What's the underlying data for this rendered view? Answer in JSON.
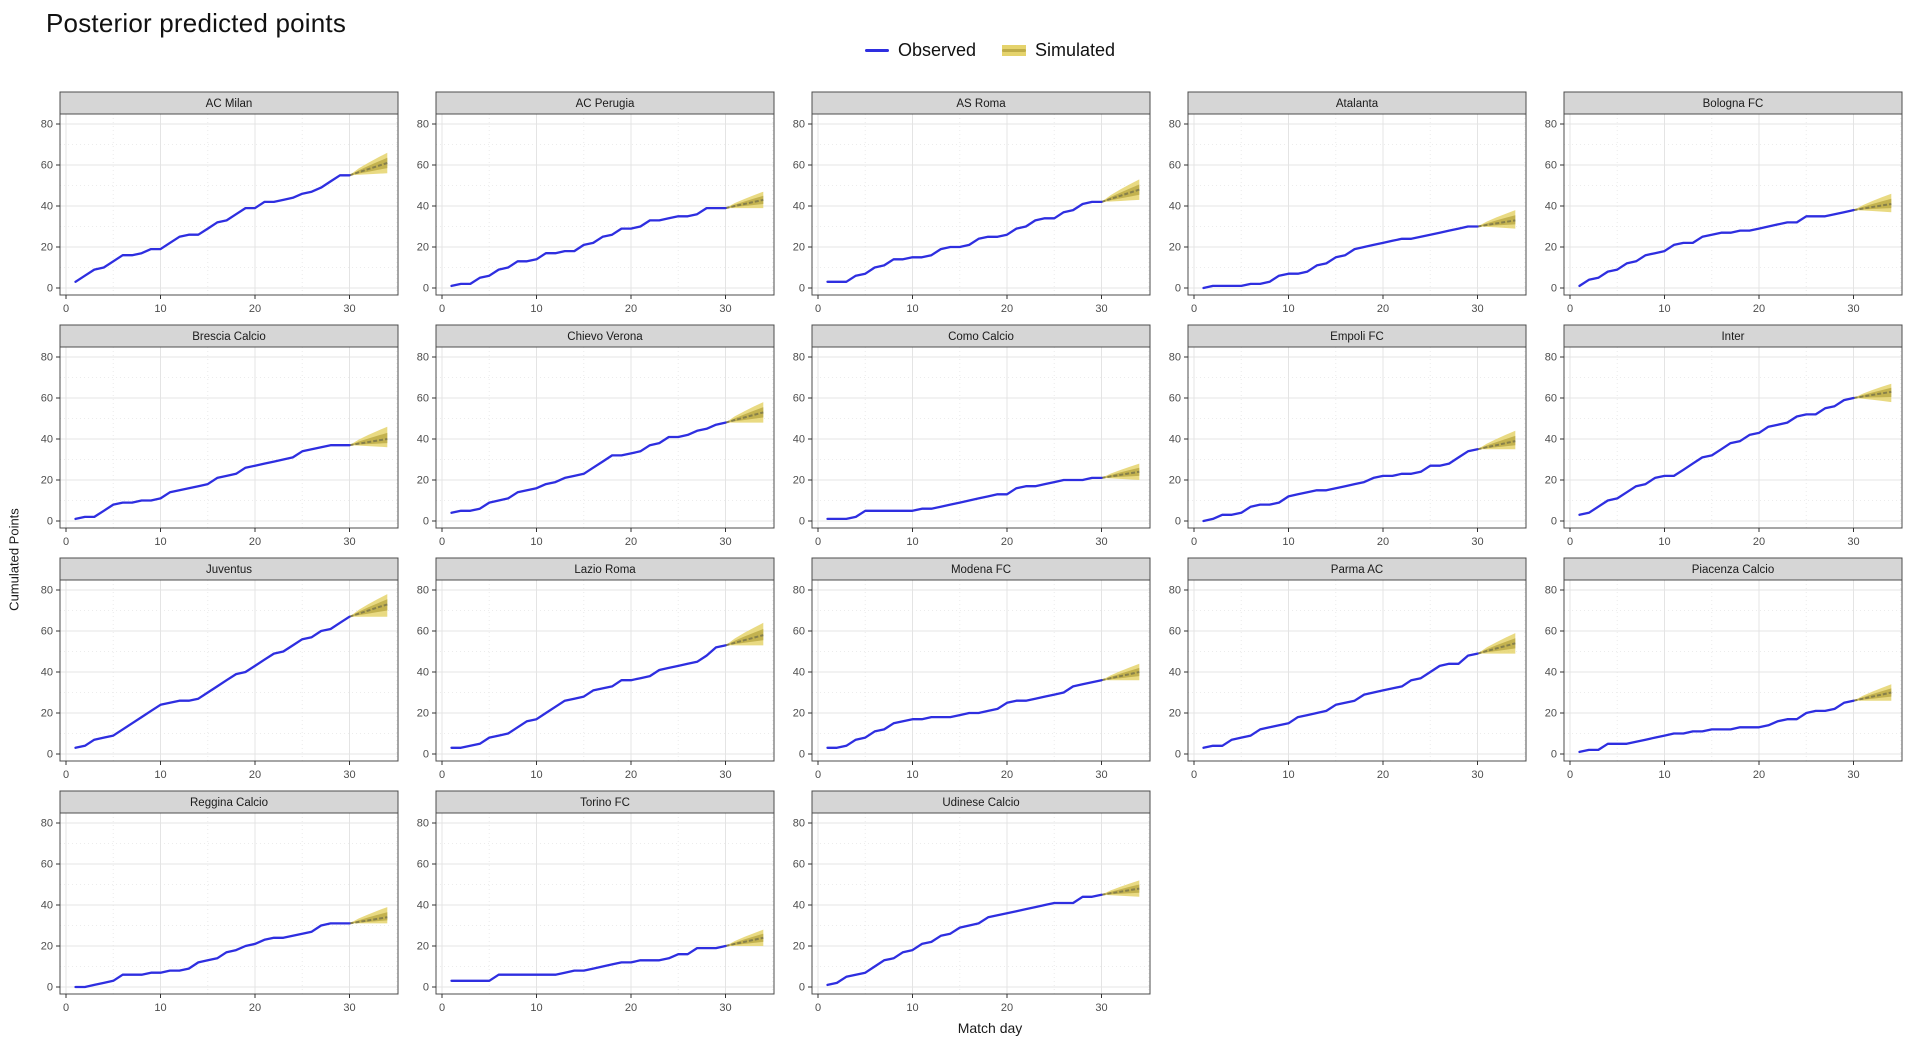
{
  "title": "Posterior predicted points",
  "legend": {
    "observed_label": "Observed",
    "simulated_label": "Simulated"
  },
  "axes": {
    "x_label": "Match day",
    "y_label": "Cumulated Points"
  },
  "colors": {
    "observed": "#2e2ee0",
    "sim_band_outer": "#e5d36c",
    "sim_band_inner": "#bfad49",
    "sim_median": "#87804a",
    "strip_bg": "#d6d6d6",
    "strip_text": "#1a1a1a",
    "panel_border": "#4d4d4d",
    "grid_major": "#e4e4e4",
    "grid_minor": "#ececec",
    "tick_mark": "#333333",
    "tick_text": "#4d4d4d",
    "panel_bg": "#ffffff"
  },
  "chart_data": {
    "type": "line",
    "title": "Posterior predicted points",
    "xlabel": "Match day",
    "ylabel": "Cumulated Points",
    "x_ticks": [
      0,
      10,
      20,
      30
    ],
    "x_minor_ticks": [
      5,
      15,
      25,
      35
    ],
    "y_ticks": [
      0,
      20,
      40,
      60,
      80
    ],
    "y_minor_ticks": [
      10,
      30,
      50,
      70
    ],
    "xlim": [
      0,
      35
    ],
    "ylim": [
      0,
      85
    ],
    "grid": true,
    "legend_position": "top-center",
    "series_legend": [
      "Observed",
      "Simulated"
    ],
    "observed_days_range": [
      1,
      30
    ],
    "sim_days_range": [
      30,
      34
    ],
    "panels": [
      {
        "team": "AC Milan",
        "observed": [
          3,
          6,
          9,
          10,
          13,
          16,
          16,
          17,
          19,
          19,
          22,
          25,
          26,
          26,
          29,
          32,
          33,
          36,
          39,
          39,
          42,
          42,
          43,
          44,
          46,
          47,
          49,
          52,
          55,
          55
        ],
        "sim_mid34": 61,
        "sim_lo34": 56,
        "sim_hi34": 66
      },
      {
        "team": "AC Perugia",
        "observed": [
          1,
          2,
          2,
          5,
          6,
          9,
          10,
          13,
          13,
          14,
          17,
          17,
          18,
          18,
          21,
          22,
          25,
          26,
          29,
          29,
          30,
          33,
          33,
          34,
          35,
          35,
          36,
          39,
          39,
          39
        ],
        "sim_mid34": 43,
        "sim_lo34": 39,
        "sim_hi34": 47
      },
      {
        "team": "AS Roma",
        "observed": [
          3,
          3,
          3,
          6,
          7,
          10,
          11,
          14,
          14,
          15,
          15,
          16,
          19,
          20,
          20,
          21,
          24,
          25,
          25,
          26,
          29,
          30,
          33,
          34,
          34,
          37,
          38,
          41,
          42,
          42
        ],
        "sim_mid34": 48,
        "sim_lo34": 43,
        "sim_hi34": 53
      },
      {
        "team": "Atalanta",
        "observed": [
          0,
          1,
          1,
          1,
          1,
          2,
          2,
          3,
          6,
          7,
          7,
          8,
          11,
          12,
          15,
          16,
          19,
          20,
          21,
          22,
          23,
          24,
          24,
          25,
          26,
          27,
          28,
          29,
          30,
          30
        ],
        "sim_mid34": 33,
        "sim_lo34": 29,
        "sim_hi34": 38
      },
      {
        "team": "Bologna FC",
        "observed": [
          1,
          4,
          5,
          8,
          9,
          12,
          13,
          16,
          17,
          18,
          21,
          22,
          22,
          25,
          26,
          27,
          27,
          28,
          28,
          29,
          30,
          31,
          32,
          32,
          35,
          35,
          35,
          36,
          37,
          38
        ],
        "sim_mid34": 41,
        "sim_lo34": 37,
        "sim_hi34": 46
      },
      {
        "team": "Brescia Calcio",
        "observed": [
          1,
          2,
          2,
          5,
          8,
          9,
          9,
          10,
          10,
          11,
          14,
          15,
          16,
          17,
          18,
          21,
          22,
          23,
          26,
          27,
          28,
          29,
          30,
          31,
          34,
          35,
          36,
          37,
          37,
          37
        ],
        "sim_mid34": 40,
        "sim_lo34": 36,
        "sim_hi34": 46
      },
      {
        "team": "Chievo Verona",
        "observed": [
          4,
          5,
          5,
          6,
          9,
          10,
          11,
          14,
          15,
          16,
          18,
          19,
          21,
          22,
          23,
          26,
          29,
          32,
          32,
          33,
          34,
          37,
          38,
          41,
          41,
          42,
          44,
          45,
          47,
          48
        ],
        "sim_mid34": 53,
        "sim_lo34": 48,
        "sim_hi34": 58
      },
      {
        "team": "Como Calcio",
        "observed": [
          1,
          1,
          1,
          2,
          5,
          5,
          5,
          5,
          5,
          5,
          6,
          6,
          7,
          8,
          9,
          10,
          11,
          12,
          13,
          13,
          16,
          17,
          17,
          18,
          19,
          20,
          20,
          20,
          21,
          21
        ],
        "sim_mid34": 24,
        "sim_lo34": 20,
        "sim_hi34": 28
      },
      {
        "team": "Empoli FC",
        "observed": [
          0,
          1,
          3,
          3,
          4,
          7,
          8,
          8,
          9,
          12,
          13,
          14,
          15,
          15,
          16,
          17,
          18,
          19,
          21,
          22,
          22,
          23,
          23,
          24,
          27,
          27,
          28,
          31,
          34,
          35
        ],
        "sim_mid34": 39,
        "sim_lo34": 35,
        "sim_hi34": 44
      },
      {
        "team": "Inter",
        "observed": [
          3,
          4,
          7,
          10,
          11,
          14,
          17,
          18,
          21,
          22,
          22,
          25,
          28,
          31,
          32,
          35,
          38,
          39,
          42,
          43,
          46,
          47,
          48,
          51,
          52,
          52,
          55,
          56,
          59,
          60
        ],
        "sim_mid34": 63,
        "sim_lo34": 58,
        "sim_hi34": 67
      },
      {
        "team": "Juventus",
        "observed": [
          3,
          4,
          7,
          8,
          9,
          12,
          15,
          18,
          21,
          24,
          25,
          26,
          26,
          27,
          30,
          33,
          36,
          39,
          40,
          43,
          46,
          49,
          50,
          53,
          56,
          57,
          60,
          61,
          64,
          67
        ],
        "sim_mid34": 73,
        "sim_lo34": 67,
        "sim_hi34": 78
      },
      {
        "team": "Lazio Roma",
        "observed": [
          3,
          3,
          4,
          5,
          8,
          9,
          10,
          13,
          16,
          17,
          20,
          23,
          26,
          27,
          28,
          31,
          32,
          33,
          36,
          36,
          37,
          38,
          41,
          42,
          43,
          44,
          45,
          48,
          52,
          53
        ],
        "sim_mid34": 58,
        "sim_lo34": 53,
        "sim_hi34": 64
      },
      {
        "team": "Modena FC",
        "observed": [
          3,
          3,
          4,
          7,
          8,
          11,
          12,
          15,
          16,
          17,
          17,
          18,
          18,
          18,
          19,
          20,
          20,
          21,
          22,
          25,
          26,
          26,
          27,
          28,
          29,
          30,
          33,
          34,
          35,
          36
        ],
        "sim_mid34": 40,
        "sim_lo34": 36,
        "sim_hi34": 44
      },
      {
        "team": "Parma AC",
        "observed": [
          3,
          4,
          4,
          7,
          8,
          9,
          12,
          13,
          14,
          15,
          18,
          19,
          20,
          21,
          24,
          25,
          26,
          29,
          30,
          31,
          32,
          33,
          36,
          37,
          40,
          43,
          44,
          44,
          48,
          49
        ],
        "sim_mid34": 54,
        "sim_lo34": 49,
        "sim_hi34": 59
      },
      {
        "team": "Piacenza Calcio",
        "observed": [
          1,
          2,
          2,
          5,
          5,
          5,
          6,
          7,
          8,
          9,
          10,
          10,
          11,
          11,
          12,
          12,
          12,
          13,
          13,
          13,
          14,
          16,
          17,
          17,
          20,
          21,
          21,
          22,
          25,
          26
        ],
        "sim_mid34": 30,
        "sim_lo34": 26,
        "sim_hi34": 34
      },
      {
        "team": "Reggina Calcio",
        "observed": [
          0,
          0,
          1,
          2,
          3,
          6,
          6,
          6,
          7,
          7,
          8,
          8,
          9,
          12,
          13,
          14,
          17,
          18,
          20,
          21,
          23,
          24,
          24,
          25,
          26,
          27,
          30,
          31,
          31,
          31
        ],
        "sim_mid34": 34,
        "sim_lo34": 31,
        "sim_hi34": 39
      },
      {
        "team": "Torino FC",
        "observed": [
          3,
          3,
          3,
          3,
          3,
          6,
          6,
          6,
          6,
          6,
          6,
          6,
          7,
          8,
          8,
          9,
          10,
          11,
          12,
          12,
          13,
          13,
          13,
          14,
          16,
          16,
          19,
          19,
          19,
          20
        ],
        "sim_mid34": 24,
        "sim_lo34": 20,
        "sim_hi34": 28
      },
      {
        "team": "Udinese Calcio",
        "observed": [
          1,
          2,
          5,
          6,
          7,
          10,
          13,
          14,
          17,
          18,
          21,
          22,
          25,
          26,
          29,
          30,
          31,
          34,
          35,
          36,
          37,
          38,
          39,
          40,
          41,
          41,
          41,
          44,
          44,
          45
        ],
        "sim_mid34": 48,
        "sim_lo34": 44,
        "sim_hi34": 52
      }
    ]
  }
}
